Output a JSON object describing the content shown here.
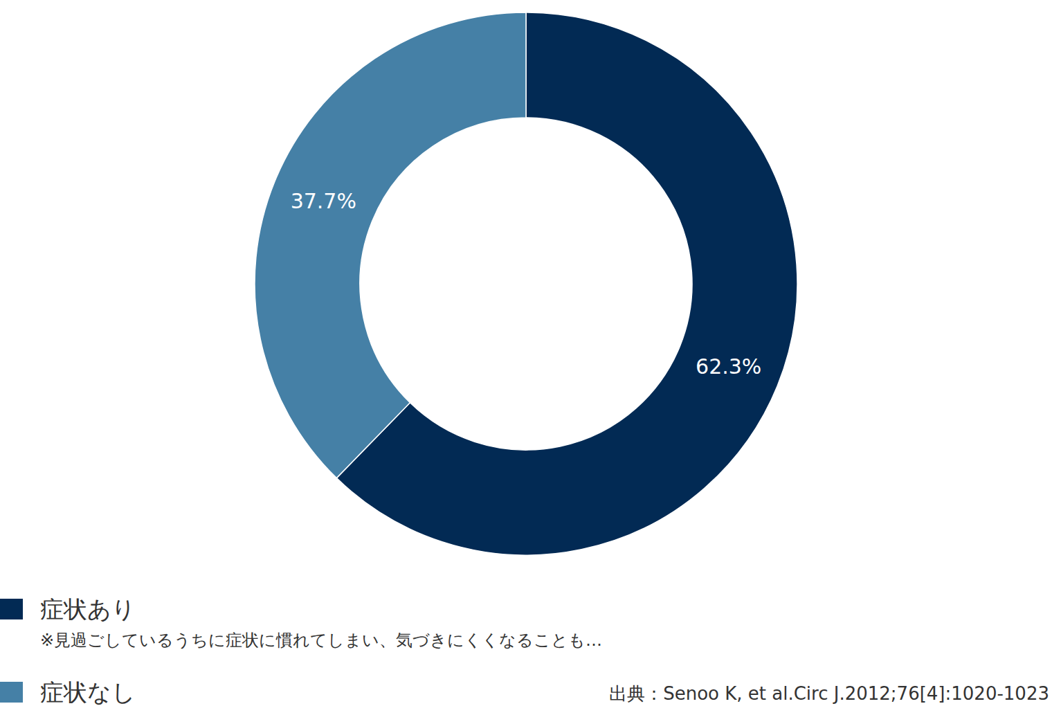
{
  "chart_data": {
    "type": "pie",
    "categories": [
      "症状あり",
      "症状なし"
    ],
    "values": [
      62.3,
      37.7
    ],
    "value_labels": [
      "62.3%",
      "37.7%"
    ],
    "colors": [
      "#022a54",
      "#4580a6"
    ],
    "data_labels": true,
    "annotation": "※見過ごしているうちに症状に慣れてしまい、気づきにくくなることも…",
    "source": "出典：Senoo K, et al.Circ J.2012;76[4]:1020-1023"
  }
}
